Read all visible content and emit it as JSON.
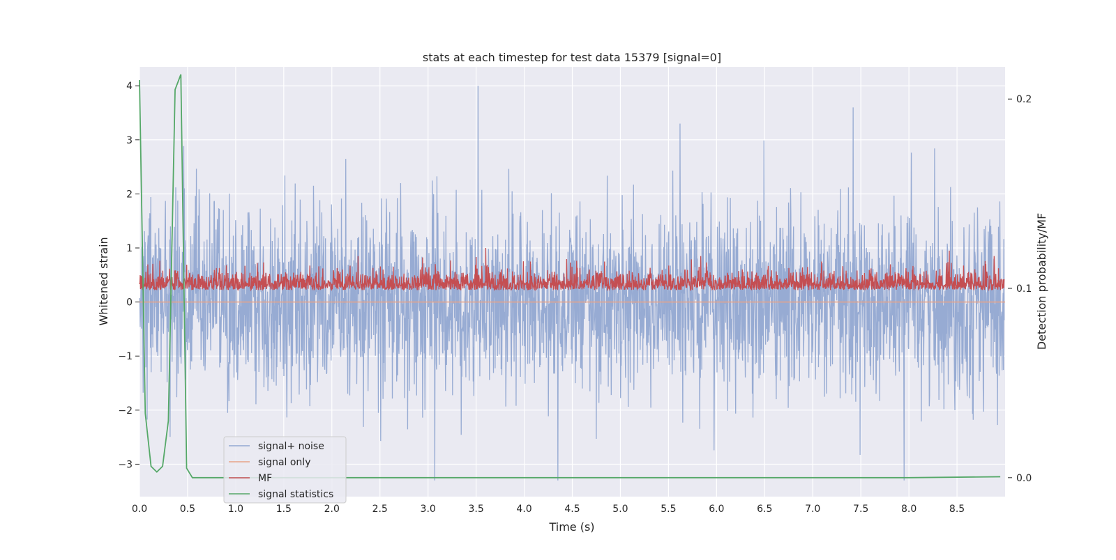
{
  "chart_data": {
    "type": "line",
    "title": "stats at each timestep for test data 15379 [signal=0]",
    "xlabel": "Time (s)",
    "ylabel": "Whitened strain",
    "y2label": "Detection probability/MF",
    "xlim": [
      0.0,
      9.0
    ],
    "ylim": [
      -3.6,
      4.35
    ],
    "y2lim": [
      -0.01,
      0.217
    ],
    "x_ticks": [
      0.0,
      0.5,
      1.0,
      1.5,
      2.0,
      2.5,
      3.0,
      3.5,
      4.0,
      4.5,
      5.0,
      5.5,
      6.0,
      6.5,
      7.0,
      7.5,
      8.0,
      8.5
    ],
    "x_tick_labels": [
      "0.0",
      "0.5",
      "1.0",
      "1.5",
      "2.0",
      "2.5",
      "3.0",
      "3.5",
      "4.0",
      "4.5",
      "5.0",
      "5.5",
      "6.0",
      "6.5",
      "7.0",
      "7.5",
      "8.0",
      "8.5"
    ],
    "y_ticks": [
      -3,
      -2,
      -1,
      0,
      1,
      2,
      3,
      4
    ],
    "y_tick_labels": [
      "−3",
      "−2",
      "−1",
      "0",
      "1",
      "2",
      "3",
      "4"
    ],
    "y2_ticks": [
      0.0,
      0.1,
      0.2
    ],
    "y2_tick_labels": [
      "0.0",
      "0.1",
      "0.2"
    ],
    "grid": true,
    "legend_position": "lower-left",
    "series": [
      {
        "name": "signal+ noise",
        "axis": "left",
        "color": "#92a8d1",
        "description": "noisy whitened strain, values roughly between -3.3 and 4.0 across 0-9 s",
        "peaks": [
          {
            "x": 3.52,
            "y": 4.0
          },
          {
            "x": 7.42,
            "y": 3.6
          },
          {
            "x": 5.62,
            "y": 3.3
          },
          {
            "x": 3.07,
            "y": -3.3
          },
          {
            "x": 4.35,
            "y": -3.3
          },
          {
            "x": 7.95,
            "y": -3.3
          }
        ]
      },
      {
        "name": "signal only",
        "axis": "left",
        "color": "#e8a388",
        "description": "constant near zero",
        "x": [
          0.0,
          9.0
        ],
        "y": [
          0.0,
          0.0
        ]
      },
      {
        "name": "MF",
        "axis": "left",
        "color": "#c44e52",
        "description": "matched filter output, roughly 0.05 to 1.0 with peak near 3.5 s",
        "peaks": [
          {
            "x": 3.6,
            "y": 1.0
          },
          {
            "x": 8.42,
            "y": 0.95
          }
        ]
      },
      {
        "name": "signal statistics",
        "axis": "right",
        "color": "#55a868",
        "x": [
          0.0,
          0.06,
          0.12,
          0.18,
          0.24,
          0.3,
          0.37,
          0.43,
          0.49,
          0.55,
          0.61,
          1.0,
          2.0,
          3.0,
          4.0,
          5.0,
          6.0,
          7.0,
          8.0,
          8.95
        ],
        "y": [
          0.21,
          0.034,
          0.006,
          0.003,
          0.006,
          0.03,
          0.205,
          0.213,
          0.005,
          0.0,
          0.0,
          0.0,
          0.0,
          0.0,
          0.0,
          0.0,
          0.0,
          0.0,
          0.0,
          0.0005
        ]
      }
    ]
  },
  "colors": {
    "plot_background": "#eaeaf2",
    "grid": "#ffffff",
    "text": "#262626"
  }
}
